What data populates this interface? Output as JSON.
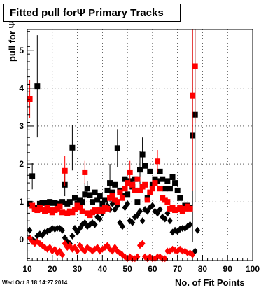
{
  "title": "Fitted pull forΨ  Primary Tracks",
  "timestamp": "Wed Oct  8 18:14:27 2014",
  "chart_data": {
    "type": "scatter",
    "title": "Fitted pull forΨ  Primary Tracks",
    "xlabel": "No. of Fit Points",
    "ylabel": "pull for Ψ",
    "xlim": [
      10,
      100
    ],
    "ylim": [
      -0.55,
      5.55
    ],
    "x_ticks": [
      10,
      20,
      30,
      40,
      50,
      60,
      70,
      80,
      90,
      100
    ],
    "y_ticks": [
      0,
      1,
      2,
      3,
      4,
      5
    ],
    "grid": true,
    "colors": {
      "black": "#000000",
      "red": "#ff0000"
    },
    "series": [
      {
        "marker": "square",
        "color": "#000000",
        "points": [
          {
            "x": 11,
            "y": 0.95
          },
          {
            "x": 12,
            "y": 1.68,
            "err": 0.35
          },
          {
            "x": 13,
            "y": 0.85
          },
          {
            "x": 14,
            "y": 4.05,
            "err": 1.35
          },
          {
            "x": 15,
            "y": 0.95
          },
          {
            "x": 16,
            "y": 0.97
          },
          {
            "x": 17,
            "y": 0.98
          },
          {
            "x": 18,
            "y": 0.95
          },
          {
            "x": 19,
            "y": 1.0
          },
          {
            "x": 20,
            "y": 0.97
          },
          {
            "x": 21,
            "y": 0.98
          },
          {
            "x": 22,
            "y": 0.95
          },
          {
            "x": 23,
            "y": 0.88
          },
          {
            "x": 24,
            "y": 1.0
          },
          {
            "x": 25,
            "y": 1.45,
            "err": 0.3
          },
          {
            "x": 26,
            "y": 0.95
          },
          {
            "x": 27,
            "y": 1.0
          },
          {
            "x": 28,
            "y": 2.43,
            "err": 0.6
          },
          {
            "x": 29,
            "y": 1.1
          },
          {
            "x": 30,
            "y": 0.95
          },
          {
            "x": 31,
            "y": 1.05
          },
          {
            "x": 32,
            "y": 1.0
          },
          {
            "x": 33,
            "y": 1.2,
            "err": 0.3
          },
          {
            "x": 34,
            "y": 1.35,
            "err": 0.2
          },
          {
            "x": 35,
            "y": 1.18
          },
          {
            "x": 36,
            "y": 1.0
          },
          {
            "x": 37,
            "y": 1.25
          },
          {
            "x": 38,
            "y": 1.05
          },
          {
            "x": 39,
            "y": 1.15
          },
          {
            "x": 40,
            "y": 0.95
          },
          {
            "x": 41,
            "y": 1.05
          },
          {
            "x": 42,
            "y": 1.3
          },
          {
            "x": 43,
            "y": 1.5,
            "err": 0.5
          },
          {
            "x": 44,
            "y": 1.25
          },
          {
            "x": 45,
            "y": 1.45
          },
          {
            "x": 46,
            "y": 2.42,
            "err": 0.5
          },
          {
            "x": 47,
            "y": 1.3
          },
          {
            "x": 48,
            "y": 1.15
          },
          {
            "x": 49,
            "y": 1.6
          },
          {
            "x": 50,
            "y": 1.2
          },
          {
            "x": 51,
            "y": 1.55
          },
          {
            "x": 52,
            "y": 1.4
          },
          {
            "x": 53,
            "y": 1.6
          },
          {
            "x": 54,
            "y": 1.0
          },
          {
            "x": 55,
            "y": 1.85,
            "err": 0.5
          },
          {
            "x": 56,
            "y": 2.25,
            "err": 0.45
          },
          {
            "x": 57,
            "y": 1.95
          },
          {
            "x": 58,
            "y": 1.1
          },
          {
            "x": 59,
            "y": 1.8
          },
          {
            "x": 60,
            "y": 1.45
          },
          {
            "x": 61,
            "y": 1.6
          },
          {
            "x": 62,
            "y": 1.55
          },
          {
            "x": 63,
            "y": 1.8
          },
          {
            "x": 64,
            "y": 1.6
          },
          {
            "x": 65,
            "y": 1.35
          },
          {
            "x": 66,
            "y": 1.55
          },
          {
            "x": 67,
            "y": 1.35
          },
          {
            "x": 68,
            "y": 1.65
          },
          {
            "x": 69,
            "y": 1.5
          },
          {
            "x": 70,
            "y": 1.3
          },
          {
            "x": 71,
            "y": 1.1
          },
          {
            "x": 72,
            "y": 0.85
          },
          {
            "x": 73,
            "y": 0.9
          },
          {
            "x": 74,
            "y": 0.9
          },
          {
            "x": 75,
            "y": 0.85
          },
          {
            "x": 76,
            "y": 2.75,
            "err": 2.8
          },
          {
            "x": 77,
            "y": 3.3,
            "err": 2.3
          }
        ]
      },
      {
        "marker": "diamond",
        "color": "#000000",
        "points": [
          {
            "x": 11,
            "y": 0.25
          },
          {
            "x": 12,
            "y": 0.0
          },
          {
            "x": 13,
            "y": -0.05
          },
          {
            "x": 14,
            "y": 0.1
          },
          {
            "x": 15,
            "y": 0.15
          },
          {
            "x": 16,
            "y": 0.12
          },
          {
            "x": 17,
            "y": 0.2
          },
          {
            "x": 18,
            "y": 0.22
          },
          {
            "x": 19,
            "y": 0.25
          },
          {
            "x": 20,
            "y": 0.3
          },
          {
            "x": 21,
            "y": 0.28
          },
          {
            "x": 22,
            "y": 0.3
          },
          {
            "x": 23,
            "y": 0.3
          },
          {
            "x": 24,
            "y": 0.25
          },
          {
            "x": 25,
            "y": 0.05
          },
          {
            "x": 26,
            "y": -0.05
          },
          {
            "x": 27,
            "y": -0.1
          },
          {
            "x": 28,
            "y": 0.1
          },
          {
            "x": 29,
            "y": 0.3
          },
          {
            "x": 30,
            "y": 0.2
          },
          {
            "x": 31,
            "y": 0.3
          },
          {
            "x": 32,
            "y": 0.4
          },
          {
            "x": 33,
            "y": 0.45
          },
          {
            "x": 34,
            "y": 0.35
          },
          {
            "x": 35,
            "y": 0.4
          },
          {
            "x": 36,
            "y": 0.45
          },
          {
            "x": 37,
            "y": 0.4
          },
          {
            "x": 38,
            "y": 0.6
          },
          {
            "x": 39,
            "y": 0.55
          },
          {
            "x": 40,
            "y": 0.7
          },
          {
            "x": 41,
            "y": 0.8
          },
          {
            "x": 42,
            "y": 0.9
          },
          {
            "x": 43,
            "y": 0.8
          },
          {
            "x": 44,
            "y": 0.95
          },
          {
            "x": 45,
            "y": 0.8
          },
          {
            "x": 46,
            "y": 0.9
          },
          {
            "x": 47,
            "y": 0.45
          },
          {
            "x": 48,
            "y": 0.35
          },
          {
            "x": 49,
            "y": 0.85
          },
          {
            "x": 50,
            "y": 0.95
          },
          {
            "x": 51,
            "y": 0.5
          },
          {
            "x": 52,
            "y": 0.45
          },
          {
            "x": 53,
            "y": 0.6
          },
          {
            "x": 54,
            "y": 0.65
          },
          {
            "x": 55,
            "y": 0.75
          },
          {
            "x": 56,
            "y": 0.5
          },
          {
            "x": 57,
            "y": 0.8
          },
          {
            "x": 58,
            "y": 0.75
          },
          {
            "x": 59,
            "y": 0.85
          },
          {
            "x": 60,
            "y": 0.9
          },
          {
            "x": 61,
            "y": 0.75
          },
          {
            "x": 62,
            "y": 0.7
          },
          {
            "x": 63,
            "y": 0.8
          },
          {
            "x": 64,
            "y": 0.6
          },
          {
            "x": 65,
            "y": 0.55
          },
          {
            "x": 66,
            "y": 0.7
          },
          {
            "x": 67,
            "y": 0.5
          },
          {
            "x": 68,
            "y": 0.2
          },
          {
            "x": 69,
            "y": 0.25
          },
          {
            "x": 70,
            "y": 0.22
          },
          {
            "x": 71,
            "y": 0.28
          },
          {
            "x": 72,
            "y": 0.3
          },
          {
            "x": 73,
            "y": 0.3
          },
          {
            "x": 74,
            "y": 0.35
          },
          {
            "x": 75,
            "y": 0.4
          },
          {
            "x": 77,
            "y": -0.3
          },
          {
            "x": 78,
            "y": 0.25
          }
        ]
      },
      {
        "marker": "square",
        "color": "#ff0000",
        "points": [
          {
            "x": 11,
            "y": 3.72,
            "err": 0.5
          },
          {
            "x": 12,
            "y": 0.9
          },
          {
            "x": 13,
            "y": 0.8
          },
          {
            "x": 14,
            "y": 0.78
          },
          {
            "x": 15,
            "y": 0.85
          },
          {
            "x": 16,
            "y": 0.8
          },
          {
            "x": 17,
            "y": 0.75
          },
          {
            "x": 18,
            "y": 0.85
          },
          {
            "x": 19,
            "y": 0.78
          },
          {
            "x": 20,
            "y": 0.72
          },
          {
            "x": 21,
            "y": 0.78
          },
          {
            "x": 22,
            "y": 0.82
          },
          {
            "x": 23,
            "y": 0.88
          },
          {
            "x": 24,
            "y": 0.72
          },
          {
            "x": 25,
            "y": 1.82,
            "err": 0.4
          },
          {
            "x": 26,
            "y": 0.7
          },
          {
            "x": 27,
            "y": 0.75
          },
          {
            "x": 28,
            "y": 0.72
          },
          {
            "x": 29,
            "y": 0.8
          },
          {
            "x": 30,
            "y": 0.9
          },
          {
            "x": 31,
            "y": 0.85
          },
          {
            "x": 32,
            "y": 0.75
          },
          {
            "x": 33,
            "y": 1.78,
            "err": 0.3
          },
          {
            "x": 34,
            "y": 0.7
          },
          {
            "x": 35,
            "y": 0.65
          },
          {
            "x": 36,
            "y": 0.72
          },
          {
            "x": 37,
            "y": 0.78
          },
          {
            "x": 38,
            "y": 0.75
          },
          {
            "x": 39,
            "y": 0.8
          },
          {
            "x": 40,
            "y": 0.75
          },
          {
            "x": 41,
            "y": 0.85
          },
          {
            "x": 42,
            "y": 0.82
          },
          {
            "x": 43,
            "y": 1.1
          },
          {
            "x": 44,
            "y": 1.15
          },
          {
            "x": 45,
            "y": 1.05
          },
          {
            "x": 46,
            "y": 1.0
          },
          {
            "x": 47,
            "y": 1.25
          },
          {
            "x": 48,
            "y": 1.1
          },
          {
            "x": 49,
            "y": 1.35
          },
          {
            "x": 50,
            "y": 1.5
          },
          {
            "x": 51,
            "y": 1.78,
            "err": 0.3
          },
          {
            "x": 52,
            "y": 1.45
          },
          {
            "x": 53,
            "y": 1.3
          },
          {
            "x": 54,
            "y": 1.6
          },
          {
            "x": 55,
            "y": 1.3
          },
          {
            "x": 56,
            "y": 1.4
          },
          {
            "x": 57,
            "y": 1.45
          },
          {
            "x": 58,
            "y": 1.05
          },
          {
            "x": 59,
            "y": 1.25
          },
          {
            "x": 60,
            "y": 1.35
          },
          {
            "x": 61,
            "y": 1.5
          },
          {
            "x": 62,
            "y": 2.07,
            "err": 0.3
          },
          {
            "x": 63,
            "y": 1.35
          },
          {
            "x": 64,
            "y": 1.1
          },
          {
            "x": 65,
            "y": 1.05
          },
          {
            "x": 66,
            "y": 1.0
          },
          {
            "x": 67,
            "y": 0.82
          },
          {
            "x": 68,
            "y": 0.85
          },
          {
            "x": 69,
            "y": 0.78
          },
          {
            "x": 70,
            "y": 0.8
          },
          {
            "x": 71,
            "y": 0.85
          },
          {
            "x": 72,
            "y": 0.75
          },
          {
            "x": 73,
            "y": 0.82
          },
          {
            "x": 74,
            "y": 0.88
          },
          {
            "x": 75,
            "y": 0.82
          },
          {
            "x": 76,
            "y": 3.8,
            "err": 2.5
          },
          {
            "x": 77,
            "y": 4.58,
            "err": 1.5
          }
        ]
      },
      {
        "marker": "diamond",
        "color": "#ff0000",
        "points": [
          {
            "x": 11,
            "y": 0.05
          },
          {
            "x": 12,
            "y": -0.05
          },
          {
            "x": 13,
            "y": -0.1
          },
          {
            "x": 14,
            "y": -0.05
          },
          {
            "x": 15,
            "y": -0.1
          },
          {
            "x": 16,
            "y": -0.15
          },
          {
            "x": 17,
            "y": -0.2
          },
          {
            "x": 18,
            "y": -0.25
          },
          {
            "x": 19,
            "y": -0.2
          },
          {
            "x": 20,
            "y": -0.3
          },
          {
            "x": 21,
            "y": -0.25
          },
          {
            "x": 22,
            "y": -0.35
          },
          {
            "x": 23,
            "y": -0.3
          },
          {
            "x": 24,
            "y": -0.4
          },
          {
            "x": 25,
            "y": -0.1
          },
          {
            "x": 26,
            "y": -0.2
          },
          {
            "x": 27,
            "y": -0.15
          },
          {
            "x": 28,
            "y": -0.25
          },
          {
            "x": 29,
            "y": -0.2
          },
          {
            "x": 30,
            "y": -0.3
          },
          {
            "x": 31,
            "y": -0.15
          },
          {
            "x": 32,
            "y": -0.25
          },
          {
            "x": 33,
            "y": -0.3
          },
          {
            "x": 34,
            "y": -0.2
          },
          {
            "x": 35,
            "y": -0.25
          },
          {
            "x": 36,
            "y": -0.3
          },
          {
            "x": 37,
            "y": -0.25
          },
          {
            "x": 38,
            "y": -0.2
          },
          {
            "x": 39,
            "y": -0.3
          },
          {
            "x": 40,
            "y": -0.25
          },
          {
            "x": 41,
            "y": -0.2
          },
          {
            "x": 42,
            "y": -0.15
          },
          {
            "x": 43,
            "y": -0.25
          },
          {
            "x": 44,
            "y": -0.3
          },
          {
            "x": 45,
            "y": -0.2
          },
          {
            "x": 46,
            "y": -0.3
          },
          {
            "x": 47,
            "y": -0.35
          },
          {
            "x": 48,
            "y": -0.4
          },
          {
            "x": 49,
            "y": -0.45
          },
          {
            "x": 50,
            "y": -0.5
          },
          {
            "x": 51,
            "y": -0.45
          },
          {
            "x": 52,
            "y": -0.5
          },
          {
            "x": 53,
            "y": -0.5
          },
          {
            "x": 54,
            "y": -0.45
          },
          {
            "x": 55,
            "y": -0.15
          },
          {
            "x": 56,
            "y": -0.1
          },
          {
            "x": 57,
            "y": -0.45
          },
          {
            "x": 58,
            "y": -0.5
          },
          {
            "x": 59,
            "y": -0.45
          },
          {
            "x": 60,
            "y": -0.5
          },
          {
            "x": 61,
            "y": -0.5
          },
          {
            "x": 62,
            "y": -0.45
          },
          {
            "x": 63,
            "y": -0.45
          },
          {
            "x": 64,
            "y": -0.5
          },
          {
            "x": 65,
            "y": -0.5
          },
          {
            "x": 66,
            "y": -0.3
          },
          {
            "x": 67,
            "y": -0.3
          },
          {
            "x": 68,
            "y": -0.25
          },
          {
            "x": 69,
            "y": -0.28
          },
          {
            "x": 70,
            "y": -0.3
          },
          {
            "x": 71,
            "y": -0.25
          },
          {
            "x": 72,
            "y": -0.3
          },
          {
            "x": 73,
            "y": -0.3
          },
          {
            "x": 74,
            "y": -0.35
          },
          {
            "x": 75,
            "y": -0.35
          },
          {
            "x": 76,
            "y": -0.4
          }
        ]
      }
    ]
  }
}
